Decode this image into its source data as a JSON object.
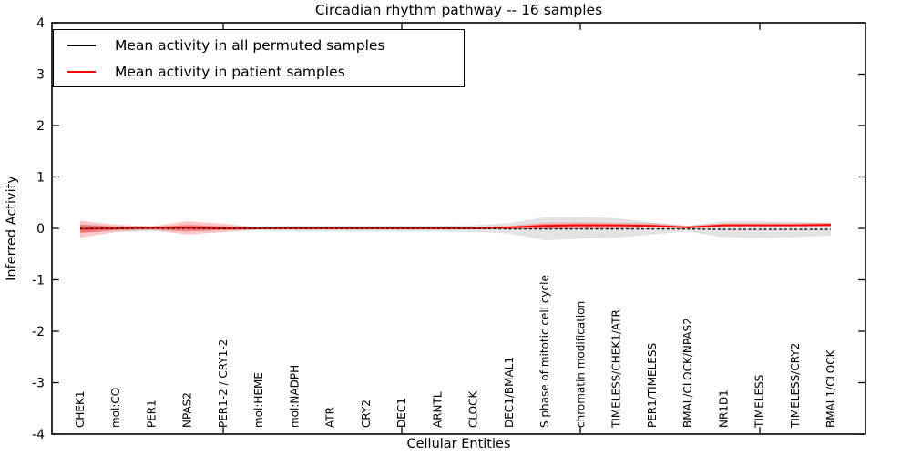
{
  "chart_data": {
    "type": "line",
    "title": "Circadian rhythm pathway -- 16 samples",
    "xlabel": "Cellular Entities",
    "ylabel": "Inferred Activity",
    "ylim": [
      -4,
      4
    ],
    "yticks": [
      4,
      3,
      2,
      1,
      0,
      -1,
      -2,
      -3,
      -4
    ],
    "y_tick_labels": [
      "4",
      "3",
      "2",
      "1",
      "0",
      "-1",
      "-2",
      "-3",
      "-4"
    ],
    "grid": false,
    "legend_position": "upper left",
    "categories": [
      "CHEK1",
      "mol:CO",
      "PER1",
      "NPAS2",
      "PER1-2 / CRY1-2",
      "mol:HEME",
      "mol:NADPH",
      "ATR",
      "CRY2",
      "DEC1",
      "ARNTL",
      "CLOCK",
      "DEC1/BMAL1",
      "S phase of mitotic cell cycle",
      "chromatin modification",
      "TIMELESS/CHEK1/ATR",
      "PER1/TIMELESS",
      "BMAL/CLOCK/NPAS2",
      "NR1D1",
      "TIMELESS",
      "TIMELESS/CRY2",
      "BMAL1/CLOCK"
    ],
    "series": [
      {
        "name": "Mean activity in all permuted samples",
        "color": "#000000",
        "style": "dashed",
        "values": [
          0,
          0,
          0,
          0,
          0,
          0,
          0,
          0,
          0,
          0,
          0,
          0,
          -0.01,
          -0.01,
          -0.01,
          -0.01,
          -0.01,
          -0.01,
          -0.02,
          -0.02,
          -0.02,
          -0.02
        ]
      },
      {
        "name": "Mean activity in patient samples",
        "color": "#ff0000",
        "style": "solid",
        "values": [
          -0.01,
          0,
          0.01,
          0.01,
          0,
          0,
          0,
          0,
          0,
          0,
          0,
          0,
          0.02,
          0.05,
          0.06,
          0.06,
          0.05,
          0.02,
          0.06,
          0.06,
          0.06,
          0.07
        ]
      }
    ],
    "bands": [
      {
        "name": "permuted-sample-range",
        "color": "#c8c8c8",
        "opacity": 0.5,
        "upper": [
          0.08,
          0.05,
          0.05,
          0.05,
          0.04,
          0.04,
          0.05,
          0.05,
          0.05,
          0.05,
          0.05,
          0.06,
          0.1,
          0.22,
          0.22,
          0.2,
          0.12,
          0.05,
          0.14,
          0.14,
          0.13,
          0.11
        ],
        "lower": [
          -0.08,
          -0.05,
          -0.05,
          -0.05,
          -0.04,
          -0.05,
          -0.06,
          -0.06,
          -0.06,
          -0.06,
          -0.06,
          -0.07,
          -0.1,
          -0.23,
          -0.2,
          -0.18,
          -0.12,
          -0.06,
          -0.17,
          -0.18,
          -0.17,
          -0.14
        ]
      },
      {
        "name": "patient-range-outer",
        "color": "#ff0000",
        "opacity": 0.22,
        "upper": [
          0.15,
          0.07,
          0.04,
          0.14,
          0.09,
          0.02,
          0.03,
          0.03,
          0.03,
          0.03,
          0.03,
          0.03,
          0.05,
          0.11,
          0.12,
          0.11,
          0.1,
          0.05,
          0.1,
          0.1,
          0.1,
          0.11
        ],
        "lower": [
          -0.18,
          -0.07,
          -0.03,
          -0.12,
          -0.07,
          -0.02,
          -0.02,
          -0.02,
          -0.02,
          -0.02,
          -0.02,
          -0.02,
          -0.02,
          -0.02,
          -0.01,
          0.0,
          0.01,
          0.0,
          0.02,
          0.03,
          0.03,
          0.02
        ]
      },
      {
        "name": "patient-range-inner",
        "color": "#ff0000",
        "opacity": 0.3,
        "upper": [
          0.07,
          0.03,
          0.02,
          0.07,
          0.04,
          0.01,
          0.015,
          0.015,
          0.015,
          0.015,
          0.015,
          0.015,
          0.03,
          0.08,
          0.09,
          0.08,
          0.07,
          0.03,
          0.08,
          0.08,
          0.08,
          0.09
        ],
        "lower": [
          -0.09,
          -0.03,
          -0.015,
          -0.06,
          -0.03,
          -0.01,
          -0.01,
          -0.01,
          -0.01,
          -0.01,
          -0.01,
          -0.01,
          -0.01,
          0.0,
          0.01,
          0.01,
          0.02,
          0.01,
          0.03,
          0.04,
          0.04,
          0.04
        ]
      }
    ],
    "legend": {
      "entries": [
        {
          "label": "Mean activity in all permuted samples",
          "color": "#000000"
        },
        {
          "label": "Mean activity in patient samples",
          "color": "#ff0000"
        }
      ]
    }
  }
}
